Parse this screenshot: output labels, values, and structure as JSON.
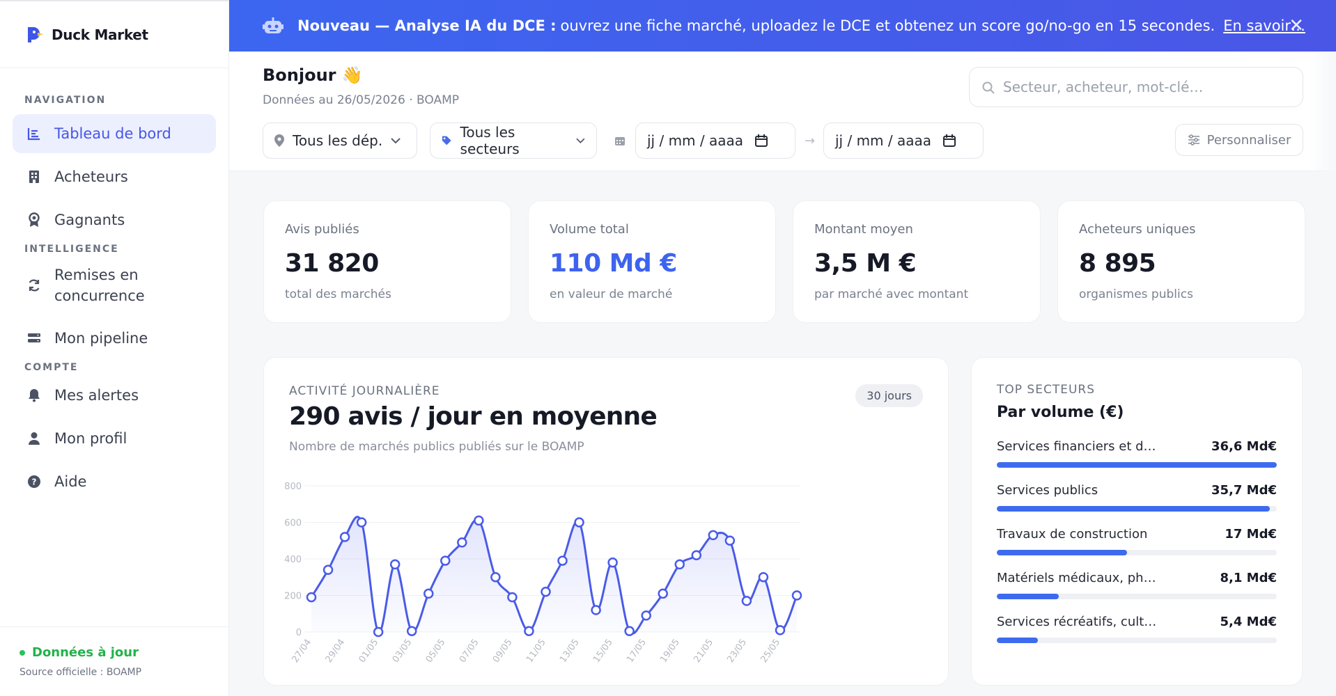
{
  "app": {
    "name": "Duck Market"
  },
  "sidebar": {
    "sections": {
      "navigation": "NAVIGATION",
      "intelligence": "INTELLIGENCE",
      "compte": "COMPTE"
    },
    "items": [
      {
        "label": "Tableau de bord",
        "icon": "chart-bars-icon",
        "active": true
      },
      {
        "label": "Acheteurs",
        "icon": "building-icon"
      },
      {
        "label": "Gagnants",
        "icon": "award-icon"
      },
      {
        "label": "Remises en concurrence",
        "label_line1": "Remises en",
        "label_line2": "concurrence",
        "icon": "refresh-icon"
      },
      {
        "label": "Mon pipeline",
        "icon": "pipeline-icon"
      },
      {
        "label": "Mes alertes",
        "icon": "bell-icon"
      },
      {
        "label": "Mon profil",
        "icon": "user-icon"
      },
      {
        "label": "Aide",
        "icon": "help-icon"
      }
    ],
    "footer": {
      "status": "Données à jour",
      "source": "Source officielle : BOAMP"
    }
  },
  "banner": {
    "strong": "Nouveau — Analyse IA du DCE :",
    "text": "ouvrez une fiche marché, uploadez le DCE et obtenez un score go/no-go en 15 secondes.",
    "link": "En savoir…",
    "close": "✕"
  },
  "header": {
    "greeting": "Bonjour 👋",
    "subtitle": "Données au 26/05/2026 · BOAMP",
    "search_placeholder": "Secteur, acheteur, mot-clé…",
    "filters": {
      "departments": "Tous les dép.",
      "sectors": "Tous les secteurs",
      "date_from": "jj / mm / aaaa",
      "date_to": "jj / mm / aaaa"
    },
    "customize": "Personnaliser"
  },
  "kpis": [
    {
      "label": "Avis publiés",
      "value": "31 820",
      "sub": "total des marchés"
    },
    {
      "label": "Volume total",
      "value": "110 Md €",
      "sub": "en valeur de marché"
    },
    {
      "label": "Montant moyen",
      "value": "3,5 M €",
      "sub": "par marché avec montant"
    },
    {
      "label": "Acheteurs uniques",
      "value": "8 895",
      "sub": "organismes publics"
    }
  ],
  "activity": {
    "overline": "ACTIVITÉ JOURNALIÈRE",
    "headline": "290 avis / jour en moyenne",
    "description": "Nombre de marchés publics publiés sur le BOAMP",
    "period": "30 jours"
  },
  "chart_data": {
    "type": "line",
    "title": "ACTIVITÉ JOURNALIÈRE",
    "ylim": [
      0,
      800
    ],
    "yticks": [
      0,
      200,
      400,
      600,
      800
    ],
    "xtick_labels": [
      "27/04",
      "29/04",
      "01/05",
      "03/05",
      "05/05",
      "07/05",
      "09/05",
      "11/05",
      "13/05",
      "15/05",
      "17/05",
      "19/05",
      "21/05",
      "23/05",
      "25/05"
    ],
    "x": [
      "27/04",
      "28/04",
      "29/04",
      "30/04",
      "01/05",
      "02/05",
      "03/05",
      "04/05",
      "05/05",
      "06/05",
      "07/05",
      "08/05",
      "09/05",
      "10/05",
      "11/05",
      "12/05",
      "13/05",
      "14/05",
      "15/05",
      "16/05",
      "17/05",
      "18/05",
      "19/05",
      "20/05",
      "21/05",
      "22/05",
      "23/05",
      "24/05",
      "25/05",
      "26/05"
    ],
    "values": [
      190,
      340,
      520,
      600,
      0,
      370,
      5,
      210,
      390,
      490,
      610,
      300,
      190,
      5,
      220,
      390,
      600,
      120,
      380,
      5,
      90,
      210,
      370,
      420,
      530,
      500,
      170,
      300,
      10,
      200
    ],
    "color": "#4a5be8",
    "area": true
  },
  "top_sectors": {
    "overline": "TOP SECTEURS",
    "title": "Par volume (€)",
    "items": [
      {
        "name": "Services financiers et d…",
        "amount": "36,6 Md€",
        "value": 36.6
      },
      {
        "name": "Services publics",
        "amount": "35,7 Md€",
        "value": 35.7
      },
      {
        "name": "Travaux de construction",
        "amount": "17 Md€",
        "value": 17
      },
      {
        "name": "Matériels médicaux, ph…",
        "amount": "8,1 Md€",
        "value": 8.1
      },
      {
        "name": "Services récréatifs, cult…",
        "amount": "5,4 Md€",
        "value": 5.4
      }
    ],
    "bar_color": "#3e6bee"
  }
}
